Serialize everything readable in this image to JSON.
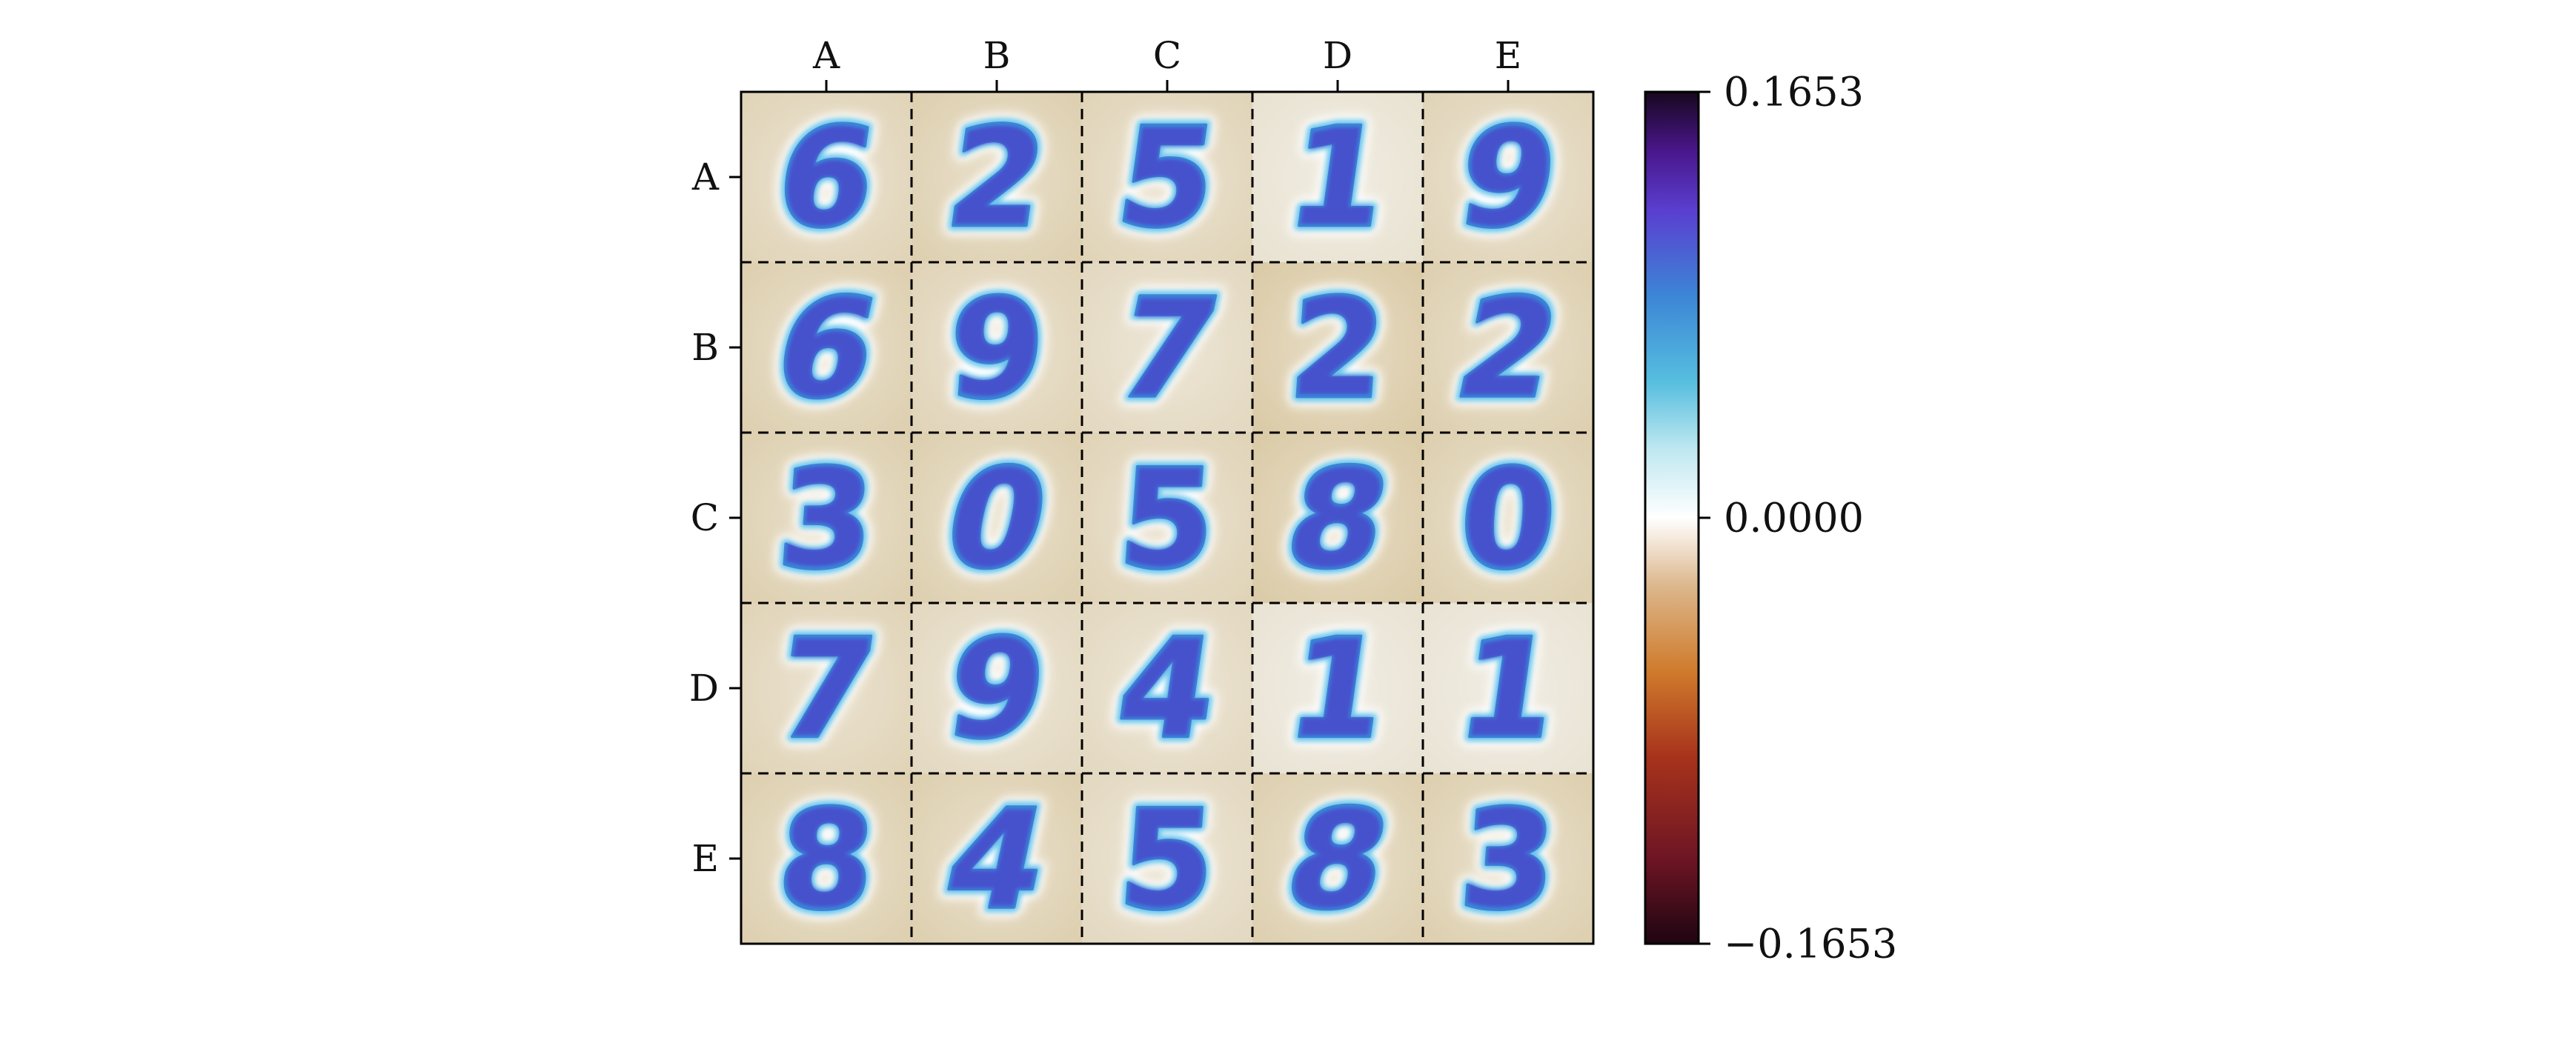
{
  "chart_data": {
    "type": "heatmap",
    "title": "",
    "xlabel": "",
    "ylabel": "",
    "x_tick_labels": [
      "A",
      "B",
      "C",
      "D",
      "E"
    ],
    "y_tick_labels": [
      "A",
      "B",
      "C",
      "D",
      "E"
    ],
    "grid": true,
    "grid_style": "dashed",
    "cells": [
      [
        "6",
        "2",
        "5",
        "1",
        "9"
      ],
      [
        "6",
        "9",
        "7",
        "2",
        "2"
      ],
      [
        "3",
        "0",
        "5",
        "8",
        "0"
      ],
      [
        "7",
        "9",
        "4",
        "1",
        "1"
      ],
      [
        "8",
        "4",
        "5",
        "8",
        "3"
      ]
    ],
    "cell_background_level": [
      [
        -0.025,
        -0.03,
        -0.025,
        -0.01,
        -0.025
      ],
      [
        -0.03,
        -0.025,
        -0.02,
        -0.035,
        -0.03
      ],
      [
        -0.03,
        -0.03,
        -0.025,
        -0.035,
        -0.03
      ],
      [
        -0.025,
        -0.02,
        -0.02,
        -0.008,
        -0.008
      ],
      [
        -0.03,
        -0.03,
        -0.02,
        -0.03,
        -0.03
      ]
    ],
    "colorbar": {
      "min": -0.1653,
      "max": 0.1653,
      "ticks": [
        0.1653,
        0.0,
        -0.1653
      ],
      "tick_labels": [
        "0.1653",
        "0.0000",
        "−0.1653"
      ],
      "colormap_stops": [
        "#e8c9a8",
        "#cfa774",
        "#c87a3a",
        "#b04a1e",
        "#7a1a24",
        "#2a0614"
      ],
      "colormap_stops_high": [
        "#d6f2f6",
        "#5cc4e0",
        "#3a8ad8",
        "#4a4ad8",
        "#5a1ab8",
        "#1a0a30"
      ]
    },
    "colors": {
      "digit_outer": "#6fc8ec",
      "digit_mid": "#3a86d8",
      "digit_core": "#4b3fc9",
      "halo": "#ffffff",
      "cell_bg": "#ddcfae",
      "cell_bg_light": "#eeebe2"
    }
  }
}
